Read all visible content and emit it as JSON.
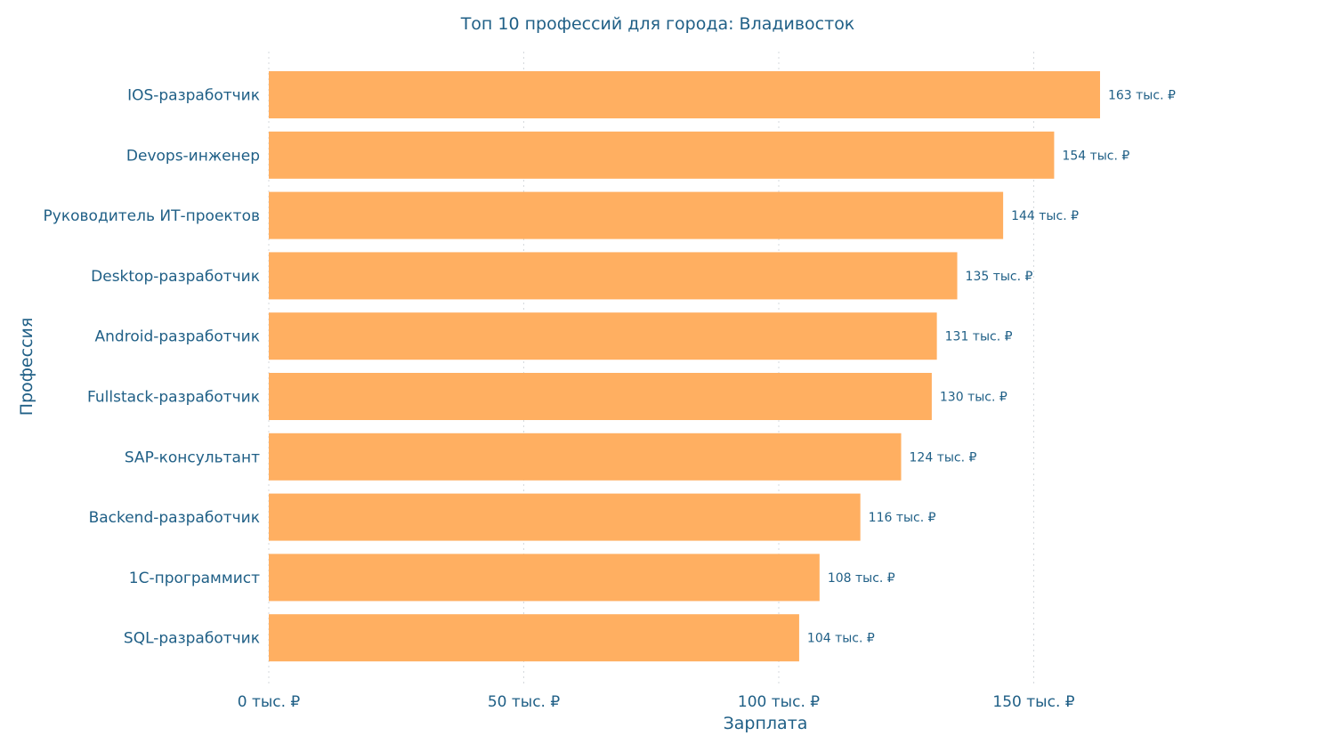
{
  "chart_data": {
    "type": "bar",
    "orientation": "horizontal",
    "title": "Топ 10 профессий для города: Владивосток",
    "xlabel": "Зарплата",
    "ylabel": "Профессия",
    "categories": [
      "IOS-разработчик",
      "Devops-инженер",
      "Руководитель ИТ-проектов",
      "Desktop-разработчик",
      "Android-разработчик",
      "Fullstack-разработчик",
      "SAP-консультант",
      "Backend-разработчик",
      "1С-программист",
      "SQL-разработчик"
    ],
    "values": [
      163,
      154,
      144,
      135,
      131,
      130,
      124,
      116,
      108,
      104
    ],
    "data_labels": [
      "163 тыс. ₽",
      "154 тыс. ₽",
      "144 тыс. ₽",
      "135 тыс. ₽",
      "131 тыс. ₽",
      "130 тыс. ₽",
      "124 тыс. ₽",
      "116 тыс. ₽",
      "108 тыс. ₽",
      "104 тыс. ₽"
    ],
    "x_ticks": [
      0,
      50,
      100,
      150
    ],
    "x_tick_labels": [
      "0 тыс. ₽",
      "50 тыс. ₽",
      "100 тыс. ₽",
      "150 тыс. ₽"
    ],
    "xlim": [
      0,
      180
    ],
    "grid": "vertical-dotted",
    "bar_color": "#FFAF61",
    "text_color": "#1f5f86"
  }
}
